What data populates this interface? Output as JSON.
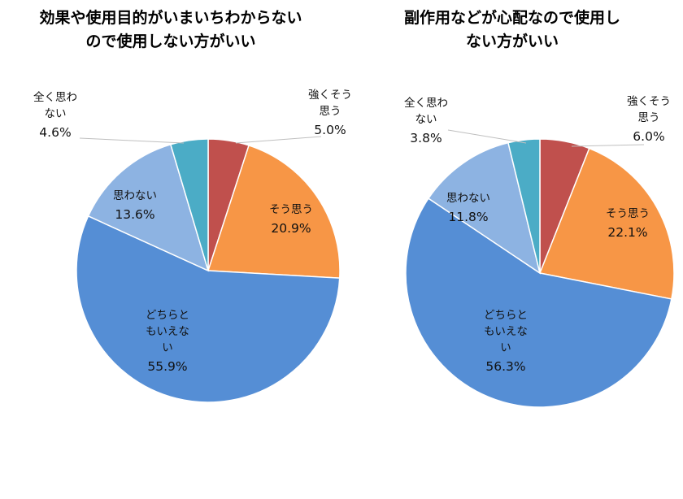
{
  "chart_data": [
    {
      "type": "pie",
      "title": [
        "効果や使用目的がいまいちわからない",
        "ので使用しない方がいい"
      ],
      "slices": [
        {
          "label": [
            "強くそう",
            "思う"
          ],
          "value": 5.0,
          "value_label": "5.0%",
          "color": "#c0504d"
        },
        {
          "label": [
            "そう思う"
          ],
          "value": 20.9,
          "value_label": "20.9%",
          "color": "#f79646"
        },
        {
          "label": [
            "どちらと",
            "もいえな",
            "い"
          ],
          "value": 55.9,
          "value_label": "55.9%",
          "color": "#558ed5"
        },
        {
          "label": [
            "思わない"
          ],
          "value": 13.6,
          "value_label": "13.6%",
          "color": "#8db3e2"
        },
        {
          "label": [
            "全く思わ",
            "ない"
          ],
          "value": 4.6,
          "value_label": "4.6%",
          "color": "#4bacc6"
        }
      ]
    },
    {
      "type": "pie",
      "title": [
        "副作用などが心配なので使用し",
        "ない方がいい"
      ],
      "slices": [
        {
          "label": [
            "強くそう",
            "思う"
          ],
          "value": 6.0,
          "value_label": "6.0%",
          "color": "#c0504d"
        },
        {
          "label": [
            "そう思う"
          ],
          "value": 22.1,
          "value_label": "22.1%",
          "color": "#f79646"
        },
        {
          "label": [
            "どちらと",
            "もいえな",
            "い"
          ],
          "value": 56.3,
          "value_label": "56.3%",
          "color": "#558ed5"
        },
        {
          "label": [
            "思わない"
          ],
          "value": 11.8,
          "value_label": "11.8%",
          "color": "#8db3e2"
        },
        {
          "label": [
            "全く思わ",
            "ない"
          ],
          "value": 3.8,
          "value_label": "3.8%",
          "color": "#4bacc6"
        }
      ]
    }
  ]
}
